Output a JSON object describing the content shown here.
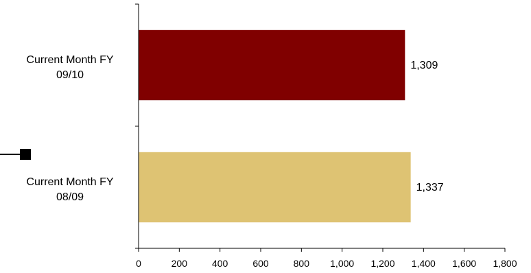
{
  "chart_data": {
    "type": "bar",
    "orientation": "horizontal",
    "categories": [
      [
        "Current Month FY",
        "09/10"
      ],
      [
        "Current Month FY",
        "08/09"
      ]
    ],
    "values": [
      1309,
      1337
    ],
    "value_labels": [
      "1,309",
      "1,337"
    ],
    "colors": [
      "#800000",
      "#DEC373"
    ],
    "xlim": [
      0,
      1800
    ],
    "xticks": [
      0,
      200,
      400,
      600,
      800,
      1000,
      1200,
      1400,
      1600,
      1800
    ],
    "xtick_labels": [
      "0",
      "200",
      "400",
      "600",
      "800",
      "1,000",
      "1,200",
      "1,400",
      "1,600",
      "1,800"
    ],
    "grid": false,
    "legend": {
      "visible": true,
      "placement": "left",
      "marker_color": "#000000",
      "label": ""
    }
  }
}
